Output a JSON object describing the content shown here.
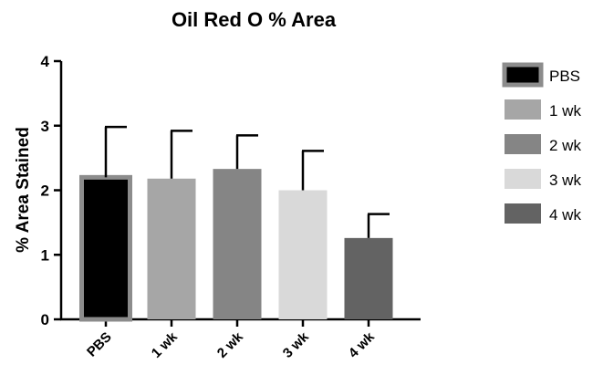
{
  "chart_data": {
    "type": "bar",
    "title": "Oil Red O % Area",
    "xlabel": "",
    "ylabel": "% Area Stained",
    "ylim": [
      0,
      4
    ],
    "yticks": [
      "0",
      "1",
      "2",
      "3",
      "4"
    ],
    "categories": [
      "PBS",
      "1 wk",
      "2 wk",
      "3 wk",
      "4 wk"
    ],
    "values": [
      2.2,
      2.18,
      2.33,
      2.0,
      1.26
    ],
    "error_upper": [
      0.78,
      0.74,
      0.52,
      0.61,
      0.37
    ],
    "colors": [
      "#000000",
      "#a6a6a6",
      "#858585",
      "#d9d9d9",
      "#636363"
    ],
    "legend": {
      "placement": "right",
      "entries": [
        "PBS",
        "1 wk",
        "2 wk",
        "3 wk",
        "4 wk"
      ]
    },
    "grid": false
  }
}
